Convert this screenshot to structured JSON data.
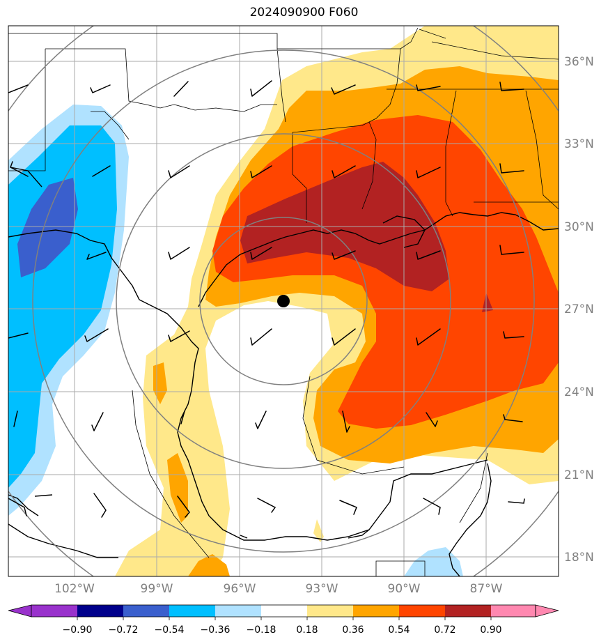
{
  "title": "2024090900 F060",
  "lat_labels": [
    "36°N",
    "33°N",
    "30°N",
    "27°N",
    "24°N",
    "21°N",
    "18°N"
  ],
  "lon_labels": [
    "102°W",
    "99°W",
    "96°W",
    "93°W",
    "90°W",
    "87°W"
  ],
  "colorbar": {
    "labels": [
      "−0.90",
      "−0.72",
      "−0.54",
      "−0.36",
      "−0.18",
      "0.18",
      "0.36",
      "0.54",
      "0.72",
      "0.90"
    ],
    "colors": [
      "#9932cc",
      "#00008b",
      "#3a5fcd",
      "#00bfff",
      "#b0e2ff",
      "#ffffff",
      "#ffe88a",
      "#ffa500",
      "#ff4500",
      "#b22222",
      "#ff88b0"
    ]
  },
  "colors": {
    "light_yellow": "#ffe88a",
    "orange": "#ffa500",
    "red_orange": "#ff4500",
    "dark_red": "#b22222",
    "light_blue": "#b0e2ff",
    "deep_sky_blue": "#00bfff",
    "royal_blue": "#3a5fcd",
    "grid": "#aaaaaa",
    "range_rings": "#808080"
  }
}
